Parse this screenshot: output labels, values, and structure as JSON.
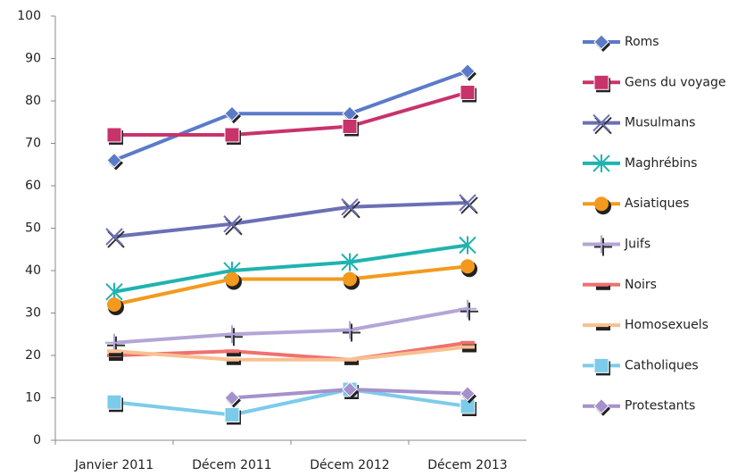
{
  "chart_data": {
    "type": "line",
    "categories": [
      "Janvier 2011",
      "Décem 2011",
      "Décem 2012",
      "Décem 2013"
    ],
    "series": [
      {
        "name": "Roms",
        "color": "#5b7bc8",
        "marker": "diamond",
        "values": [
          66,
          77,
          77,
          87
        ]
      },
      {
        "name": "Gens du voyage",
        "color": "#c8336c",
        "marker": "square",
        "values": [
          72,
          72,
          74,
          82
        ]
      },
      {
        "name": "Musulmans",
        "color": "#6b6fb5",
        "marker": "x",
        "values": [
          48,
          51,
          55,
          56
        ]
      },
      {
        "name": "Maghrébins",
        "color": "#1fb3b0",
        "marker": "asterisk",
        "values": [
          35,
          40,
          42,
          46
        ]
      },
      {
        "name": "Asiatiques",
        "color": "#f39a1e",
        "marker": "circle",
        "values": [
          32,
          38,
          38,
          41
        ]
      },
      {
        "name": "Juifs",
        "color": "#b3a6d6",
        "marker": "plus",
        "values": [
          23,
          25,
          26,
          31
        ]
      },
      {
        "name": "Noirs",
        "color": "#f07070",
        "marker": "dash",
        "values": [
          20,
          21,
          19,
          23
        ]
      },
      {
        "name": "Homosexuels",
        "color": "#f8c090",
        "marker": "dash",
        "values": [
          21,
          19,
          19,
          22
        ]
      },
      {
        "name": "Catholiques",
        "color": "#7ccbea",
        "marker": "square",
        "values": [
          9,
          6,
          12,
          8
        ]
      },
      {
        "name": "Protestants",
        "color": "#a591cc",
        "marker": "diamond",
        "values": [
          null,
          10,
          12,
          11
        ]
      }
    ],
    "ylim": [
      0,
      100
    ],
    "yticks": [
      0,
      10,
      20,
      30,
      40,
      50,
      60,
      70,
      80,
      90,
      100
    ],
    "grid": false,
    "legend": "right"
  }
}
